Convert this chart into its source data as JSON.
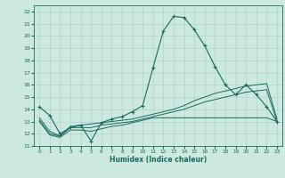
{
  "xlabel": "Humidex (Indice chaleur)",
  "xlim": [
    -0.5,
    23.5
  ],
  "ylim": [
    11,
    22.5
  ],
  "yticks": [
    11,
    12,
    13,
    14,
    15,
    16,
    17,
    18,
    19,
    20,
    21,
    22
  ],
  "xticks": [
    0,
    1,
    2,
    3,
    4,
    5,
    6,
    7,
    8,
    9,
    10,
    11,
    12,
    13,
    14,
    15,
    16,
    17,
    18,
    19,
    20,
    21,
    22,
    23
  ],
  "bg_color": "#cce8e0",
  "grid_color": "#aed4cc",
  "line_color": "#1a6b5a",
  "line1_x": [
    0,
    1,
    2,
    3,
    4,
    5,
    6,
    7,
    8,
    9,
    10,
    11,
    12,
    13,
    14,
    15,
    16,
    17,
    18,
    19,
    20,
    21,
    22,
    23
  ],
  "line1_y": [
    14.2,
    13.5,
    12.0,
    12.5,
    12.7,
    11.4,
    12.9,
    13.2,
    13.4,
    13.8,
    14.3,
    17.4,
    20.4,
    21.6,
    21.5,
    20.5,
    19.2,
    17.5,
    16.0,
    15.2,
    16.0,
    15.2,
    14.2,
    13.0
  ],
  "line2_x": [
    0,
    1,
    2,
    3,
    4,
    5,
    6,
    7,
    8,
    9,
    10,
    11,
    12,
    13,
    14,
    15,
    16,
    17,
    18,
    19,
    20,
    21,
    22,
    23
  ],
  "line2_y": [
    13.3,
    12.2,
    11.8,
    12.6,
    12.7,
    12.8,
    12.9,
    13.0,
    13.1,
    13.2,
    13.4,
    13.6,
    13.8,
    14.0,
    14.3,
    14.7,
    15.0,
    15.3,
    15.5,
    15.7,
    15.9,
    16.0,
    16.1,
    13.2
  ],
  "line3_x": [
    0,
    1,
    2,
    3,
    4,
    5,
    6,
    7,
    8,
    9,
    10,
    11,
    12,
    13,
    14,
    15,
    16,
    17,
    18,
    19,
    20,
    21,
    22,
    23
  ],
  "line3_y": [
    13.1,
    12.0,
    11.8,
    12.5,
    12.5,
    12.5,
    12.7,
    12.8,
    12.9,
    13.0,
    13.2,
    13.4,
    13.6,
    13.8,
    14.0,
    14.3,
    14.6,
    14.8,
    15.0,
    15.2,
    15.4,
    15.5,
    15.6,
    13.0
  ],
  "line4_x": [
    0,
    1,
    2,
    3,
    4,
    5,
    6,
    7,
    8,
    9,
    10,
    11,
    12,
    13,
    14,
    15,
    16,
    17,
    18,
    19,
    20,
    21,
    22,
    23
  ],
  "line4_y": [
    13.0,
    11.9,
    11.7,
    12.3,
    12.3,
    12.2,
    12.4,
    12.6,
    12.7,
    12.9,
    13.1,
    13.3,
    13.3,
    13.3,
    13.3,
    13.3,
    13.3,
    13.3,
    13.3,
    13.3,
    13.3,
    13.3,
    13.3,
    13.0
  ]
}
